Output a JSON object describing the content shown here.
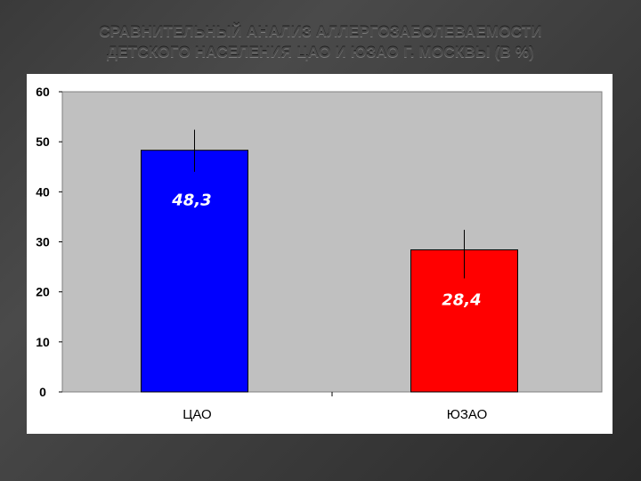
{
  "slide": {
    "title_line1": "СРАВНИТЕЛЬНЫЙ АНАЛИЗ АЛЛЕРГОЗАБОЛЕВАЕМОСТИ",
    "title_line2": "ДЕТСКОГО НАСЕЛЕНИЯ ЦАО И ЮЗАО Г. МОСКВЫ (В %)"
  },
  "chart_data": {
    "type": "bar",
    "title": "",
    "xlabel": "",
    "ylabel": "",
    "categories": [
      "ЦАО",
      "ЮЗАО"
    ],
    "values": [
      48.3,
      28.4
    ],
    "data_labels": [
      "48,3",
      "28,4"
    ],
    "error_bars": [
      [
        44,
        52.4
      ],
      [
        22.7,
        32.4
      ]
    ],
    "bar_colors": [
      "#0000ff",
      "#ff0000"
    ],
    "plot_background": "#c0c0c0",
    "ylim": [
      0,
      60
    ],
    "y_ticks": [
      0,
      10,
      20,
      30,
      40,
      50,
      60
    ],
    "grid": false,
    "legend": "none"
  }
}
